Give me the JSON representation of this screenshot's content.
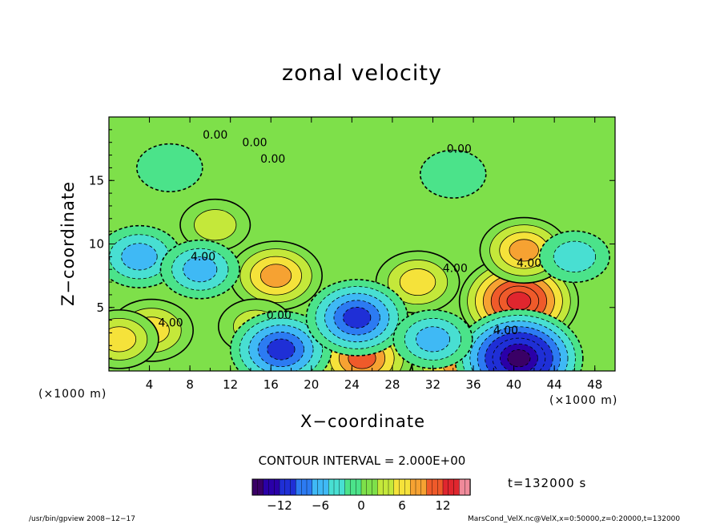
{
  "chart_data": {
    "type": "heatmap",
    "title": "zonal velocity",
    "xlabel": "X−coordinate",
    "ylabel": "Z−coordinate",
    "x_unit_left": "(×1000 m)",
    "x_unit_right": "(×1000 m)",
    "xlim": [
      0,
      50
    ],
    "ylim": [
      0,
      20
    ],
    "xticks": [
      "4",
      "8",
      "12",
      "16",
      "20",
      "24",
      "28",
      "32",
      "36",
      "40",
      "44",
      "48"
    ],
    "yticks": [
      "5",
      "10",
      "15"
    ],
    "contour_interval": "CONTOUR INTERVAL = 2.000E+00",
    "contour_labels": [
      "0.00",
      "0.00",
      "0.00",
      "0.00",
      "4.00",
      "4.00",
      "0.00",
      "4.00",
      "4.00",
      "4.00"
    ],
    "colorbar": {
      "ticks": [
        "−12",
        "−6",
        "0",
        "6",
        "12"
      ],
      "range": [
        -16,
        16
      ],
      "colors": [
        "#3a0066",
        "#2a00a8",
        "#1f2fd6",
        "#2c7bf2",
        "#3fb9f5",
        "#48dfd2",
        "#4be38a",
        "#7ee04a",
        "#c4e83a",
        "#f5e23a",
        "#f6a232",
        "#ef5a2a",
        "#e0262e",
        "#f08a9a"
      ]
    },
    "time_label": "t=132000 s",
    "anomalies": [
      {
        "x": 16.5,
        "z": 7.5,
        "v": 8
      },
      {
        "x": 30.5,
        "z": 7.0,
        "v": 6
      },
      {
        "x": 40.5,
        "z": 5.5,
        "v": 14
      },
      {
        "x": 41,
        "z": 9.5,
        "v": 7
      },
      {
        "x": 25,
        "z": 1.0,
        "v": 10
      },
      {
        "x": 4.2,
        "z": 3.2,
        "v": 6
      },
      {
        "x": 1.0,
        "z": 2.5,
        "v": 5
      },
      {
        "x": 14.5,
        "z": 3.5,
        "v": 4
      },
      {
        "x": 34.5,
        "z": 0.5,
        "v": 8
      },
      {
        "x": 10.5,
        "z": 11.5,
        "v": 3
      },
      {
        "x": 17,
        "z": 1.7,
        "v": -10
      },
      {
        "x": 24.5,
        "z": 4.2,
        "v": -10
      },
      {
        "x": 40.5,
        "z": 1.0,
        "v": -16
      },
      {
        "x": 32,
        "z": 2.5,
        "v": -5
      },
      {
        "x": 3,
        "z": 9.0,
        "v": -6
      },
      {
        "x": 9,
        "z": 8.0,
        "v": -5
      },
      {
        "x": 6,
        "z": 16.0,
        "v": -2
      },
      {
        "x": 46,
        "z": 9.0,
        "v": -3
      },
      {
        "x": 34,
        "z": 15.5,
        "v": -2
      }
    ]
  },
  "footer": {
    "left": "/usr/bin/gpview  2008−12−17",
    "right": "MarsCond_VelX.nc@VelX,x=0:50000,z=0:20000,t=132000"
  }
}
